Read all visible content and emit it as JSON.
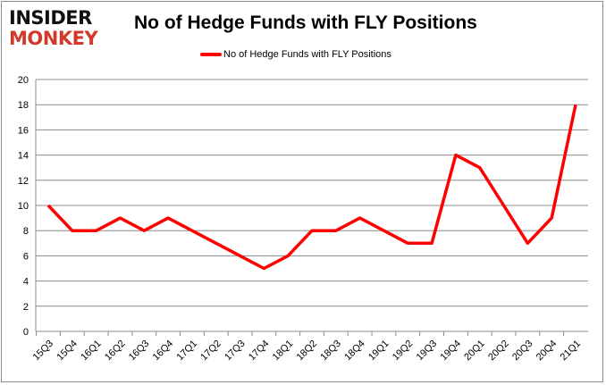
{
  "logo": {
    "line1": "INSIDER",
    "line2": "MONKEY"
  },
  "chart_data": {
    "type": "line",
    "title": "No of Hedge Funds with FLY Positions",
    "categories": [
      "15Q3",
      "15Q4",
      "16Q1",
      "16Q2",
      "16Q3",
      "16Q4",
      "17Q1",
      "17Q2",
      "17Q3",
      "17Q4",
      "18Q1",
      "18Q2",
      "18Q3",
      "18Q4",
      "19Q1",
      "19Q2",
      "19Q3",
      "19Q4",
      "20Q1",
      "20Q2",
      "20Q3",
      "20Q4",
      "21Q1"
    ],
    "series": [
      {
        "name": "No of Hedge Funds with FLY Positions",
        "color": "#ff0000",
        "values": [
          10,
          8,
          8,
          9,
          8,
          9,
          8,
          7,
          6,
          5,
          6,
          8,
          8,
          9,
          8,
          7,
          7,
          14,
          13,
          10,
          7,
          9,
          18
        ]
      }
    ],
    "ylim": [
      0,
      20
    ],
    "yticks": [
      0,
      2,
      4,
      6,
      8,
      10,
      12,
      14,
      16,
      18,
      20
    ],
    "grid": true,
    "legend": "top-center"
  }
}
